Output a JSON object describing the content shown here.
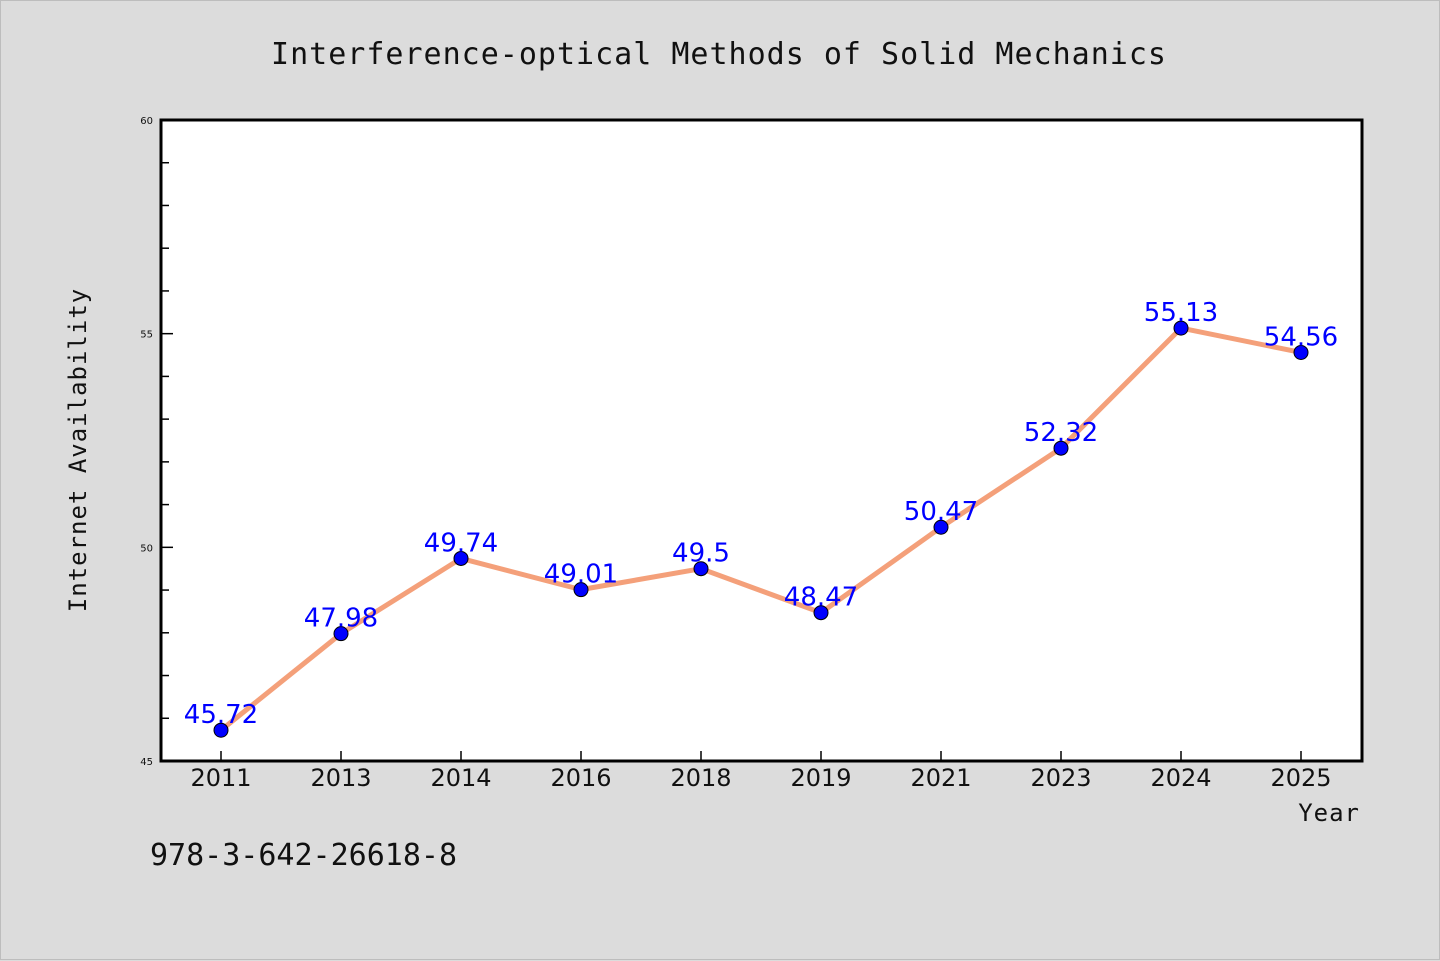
{
  "footer": {
    "isbn": "978-3-642-26618-8"
  },
  "colors": {
    "background": "#dcdcdc",
    "plot_background": "#ffffff",
    "line": "#f4a07a",
    "marker": "#0000ff",
    "data_label": "#0000ff"
  },
  "chart_data": {
    "type": "line",
    "title": "Interference-optical Methods of Solid Mechanics",
    "xlabel": "Year",
    "ylabel": "Internet Availability",
    "categories": [
      "2011",
      "2013",
      "2014",
      "2016",
      "2018",
      "2019",
      "2021",
      "2023",
      "2024",
      "2025"
    ],
    "series": [
      {
        "values": [
          45.72,
          47.98,
          49.74,
          49.01,
          49.5,
          48.47,
          50.47,
          52.32,
          55.13,
          54.56
        ],
        "data_labels": [
          "45.72",
          "47.98",
          "49.74",
          "49.01",
          "49.5",
          "48.47",
          "50.47",
          "52.32",
          "55.13",
          "54.56"
        ]
      }
    ],
    "ylim": [
      45,
      60
    ],
    "yticks": [
      "45",
      "50",
      "55",
      "60"
    ],
    "y_minor_step": 1,
    "grid": false,
    "legend": "none"
  }
}
